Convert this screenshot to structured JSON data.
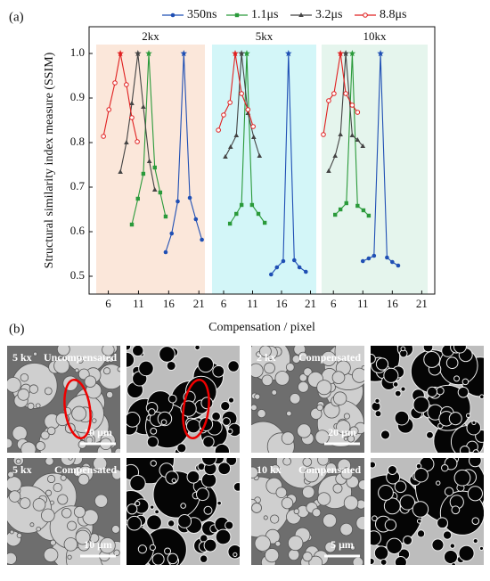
{
  "chart_data": {
    "type": "line",
    "panel_label": "(a)",
    "xlabel": "Compensation / pixel",
    "ylabel": "Structural similarity index measure (SSIM)",
    "ylim": [
      0.46,
      1.06
    ],
    "yticks": [
      0.5,
      0.6,
      0.7,
      0.8,
      0.9,
      {
        "value": 1,
        "label": "1.0"
      }
    ],
    "legend": [
      {
        "name": "350ns",
        "color": "#1f4fb4"
      },
      {
        "name": "1.1μs",
        "color": "#2a9a3a"
      },
      {
        "name": "3.2μs",
        "color": "#444444"
      },
      {
        "name": "8.8μs",
        "color": "#e02020"
      }
    ],
    "panels": [
      {
        "label": "2kx",
        "color": "#fbe7da",
        "xlim": [
          4,
          22
        ],
        "xticks": [
          6,
          11,
          16,
          21
        ],
        "series": [
          {
            "x": [
              15.5,
              16.5,
              17.5,
              18.5,
              19.5,
              20.5,
              21.5
            ],
            "values": [
              0.554,
              0.596,
              0.668,
              1.0,
              0.676,
              0.628,
              0.582
            ]
          },
          {
            "x": [
              9.9,
              10.9,
              11.8,
              12.7,
              13.7,
              14.6,
              15.5
            ],
            "values": [
              0.616,
              0.674,
              0.73,
              1.0,
              0.744,
              0.688,
              0.634
            ]
          },
          {
            "x": [
              8.0,
              9.0,
              9.9,
              10.9,
              11.8,
              12.8,
              13.7
            ],
            "values": [
              0.734,
              0.8,
              0.888,
              1.0,
              0.88,
              0.758,
              0.694
            ]
          },
          {
            "x": [
              5.2,
              6.1,
              7.1,
              8.0,
              9.0,
              9.9,
              10.8
            ],
            "values": [
              0.814,
              0.874,
              0.934,
              1.0,
              0.93,
              0.856,
              0.802
            ]
          }
        ]
      },
      {
        "label": "5kx",
        "color": "#d3f6f8",
        "xlim": [
          4,
          22
        ],
        "xticks": [
          6,
          11,
          16,
          21
        ],
        "series": [
          {
            "x": [
              14.2,
              15.2,
              16.3,
              17.2,
              18.2,
              19.1,
              20.2
            ],
            "values": [
              0.504,
              0.52,
              0.534,
              1.0,
              0.536,
              0.52,
              0.51
            ]
          },
          {
            "x": [
              7.1,
              8.2,
              9.1,
              10.0,
              10.9,
              12.0,
              13.1
            ],
            "values": [
              0.618,
              0.64,
              0.66,
              1.0,
              0.66,
              0.64,
              0.62
            ]
          },
          {
            "x": [
              6.3,
              7.2,
              8.2,
              9.1,
              10.2,
              11.2,
              12.2
            ],
            "values": [
              0.768,
              0.79,
              0.816,
              1.0,
              0.866,
              0.812,
              0.77
            ]
          },
          {
            "x": [
              5.1,
              6.0,
              7.1,
              8.0,
              9.1,
              10.2,
              11.1
            ],
            "values": [
              0.828,
              0.862,
              0.89,
              1.0,
              0.91,
              0.874,
              0.836
            ]
          }
        ]
      },
      {
        "label": "10kx",
        "color": "#e5f5ed",
        "xlim": [
          4,
          22
        ],
        "xticks": [
          6,
          11,
          16,
          21
        ],
        "series": [
          {
            "x": [
              11.0,
              12.0,
              12.9,
              14.0,
              15.1,
              16.0,
              17.0
            ],
            "values": [
              0.534,
              0.54,
              0.546,
              1.0,
              0.542,
              0.532,
              0.524
            ]
          },
          {
            "x": [
              6.3,
              7.2,
              8.2,
              9.2,
              10.1,
              11.1,
              12.0
            ],
            "values": [
              0.638,
              0.65,
              0.664,
              1.0,
              0.658,
              0.648,
              0.636
            ]
          },
          {
            "x": [
              5.2,
              6.3,
              7.2,
              8.1,
              9.2,
              10.1,
              11.0
            ],
            "values": [
              0.736,
              0.77,
              0.818,
              1.0,
              0.816,
              0.806,
              0.792
            ]
          },
          {
            "x": [
              4.3,
              5.2,
              6.1,
              7.2,
              8.1,
              9.2,
              10.1
            ],
            "values": [
              0.818,
              0.894,
              0.91,
              1.0,
              0.91,
              0.884,
              0.868
            ]
          }
        ]
      }
    ]
  },
  "figure_b": {
    "panel_label": "(b)",
    "micrographs": [
      {
        "mag": "5 kx",
        "state": "Uncompensated",
        "scale_bar": "10 μm"
      },
      {
        "mag": "2 kx",
        "state": "Compensated",
        "scale_bar": "20 μm"
      },
      {
        "mag": "5 kx",
        "state": "Compensated",
        "scale_bar": "10 μm"
      },
      {
        "mag": "10 kx",
        "state": "Compensated",
        "scale_bar": "5 μm"
      }
    ]
  }
}
